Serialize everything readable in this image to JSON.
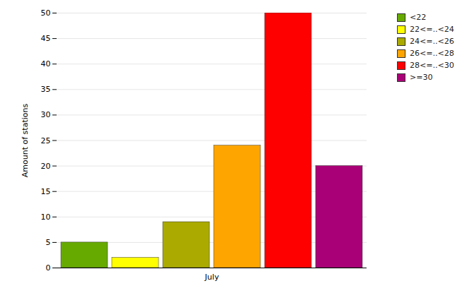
{
  "chart_data": {
    "type": "bar",
    "ylabel": "Amount of stations",
    "categories": [
      "July"
    ],
    "series": [
      {
        "name": "<22",
        "color": "#66aa00",
        "values": [
          5
        ]
      },
      {
        "name": "22<=..<24",
        "color": "#ffff00",
        "values": [
          2
        ]
      },
      {
        "name": "24<=..<26",
        "color": "#aaaa00",
        "values": [
          9
        ]
      },
      {
        "name": "26<=..<28",
        "color": "#ffa500",
        "values": [
          24
        ]
      },
      {
        "name": "28<=..<30",
        "color": "#ff0000",
        "values": [
          50
        ]
      },
      {
        "name": ">=30",
        "color": "#aa0077",
        "values": [
          20
        ]
      }
    ],
    "ylim": [
      0,
      50
    ],
    "yticks": [
      0,
      5,
      10,
      15,
      20,
      25,
      30,
      35,
      40,
      45,
      50
    ],
    "grid": true,
    "legend": "upper right"
  }
}
